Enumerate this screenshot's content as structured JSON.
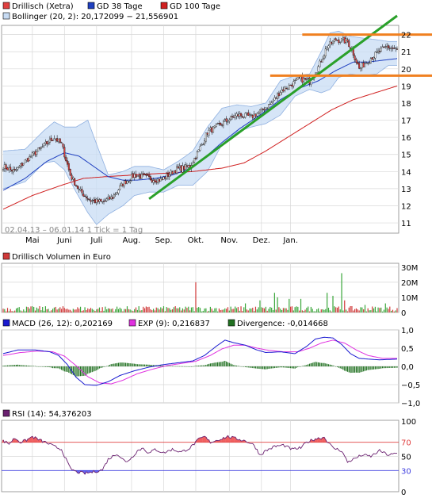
{
  "colors": {
    "price": "#e04040",
    "sma38": "#2040c0",
    "sma100": "#d02020",
    "bollinger_fill": "#c8dcf4",
    "bollinger_line": "#8fb0e0",
    "trend_green": "#2aa02a",
    "resistance_orange": "#f08020",
    "volume_up": "#3aa63a",
    "volume_down": "#d03a3a",
    "macd": "#1a1ad0",
    "macd_signal": "#e030e0",
    "divergence": "#207020",
    "rsi": "#6a2070",
    "rsi_fill_over": "#f06060",
    "rsi_fill_under": "#6060f0",
    "rsi_line_70": "#e04040",
    "rsi_line_30": "#4040e0",
    "grid": "#d8d8d8"
  },
  "chart_data": [
    {
      "type": "candlestick",
      "id": "price",
      "legend": [
        {
          "label": "Drillisch (Xetra)",
          "color_key": "price"
        },
        {
          "label": "GD 38 Tage",
          "color_key": "sma38"
        },
        {
          "label": "GD 100 Tage",
          "color_key": "sma100"
        },
        {
          "label": "Bollinger (20, 2): 20,172099 − 21,556901",
          "color_key": "bollinger_fill"
        }
      ],
      "info": "02.04.13 – 06.01.14   1 Tick = 1 Tag",
      "x_labels": [
        "Mai",
        "Juni",
        "Juli",
        "Aug.",
        "Sep.",
        "Okt.",
        "Nov.",
        "Dez.",
        "Jan."
      ],
      "y_ticks": [
        11,
        12,
        13,
        14,
        15,
        16,
        17,
        18,
        19,
        20,
        21,
        22
      ],
      "ylim": [
        10.4,
        22.4
      ],
      "close_anchors": [
        [
          0,
          14.3
        ],
        [
          8,
          14.0
        ],
        [
          15,
          14.6
        ],
        [
          25,
          15.3
        ],
        [
          35,
          16.0
        ],
        [
          40,
          15.6
        ],
        [
          46,
          13.8
        ],
        [
          52,
          12.9
        ],
        [
          60,
          12.3
        ],
        [
          68,
          12.2
        ],
        [
          75,
          12.5
        ],
        [
          82,
          13.3
        ],
        [
          90,
          13.8
        ],
        [
          100,
          13.6
        ],
        [
          108,
          13.5
        ],
        [
          118,
          14.1
        ],
        [
          128,
          14.3
        ],
        [
          134,
          15.2
        ],
        [
          140,
          16.3
        ],
        [
          150,
          16.8
        ],
        [
          160,
          17.3
        ],
        [
          170,
          17.2
        ],
        [
          176,
          17.5
        ],
        [
          184,
          18.0
        ],
        [
          190,
          18.7
        ],
        [
          196,
          19.0
        ],
        [
          203,
          19.4
        ],
        [
          210,
          19.3
        ],
        [
          216,
          20.1
        ],
        [
          222,
          21.3
        ],
        [
          228,
          21.7
        ],
        [
          236,
          21.6
        ],
        [
          240,
          20.9
        ],
        [
          244,
          20.0
        ],
        [
          250,
          20.5
        ],
        [
          256,
          20.9
        ],
        [
          263,
          21.3
        ],
        [
          270,
          21.1
        ]
      ],
      "sma38_anchors": [
        [
          0,
          12.9
        ],
        [
          15,
          13.6
        ],
        [
          30,
          14.6
        ],
        [
          42,
          15.1
        ],
        [
          52,
          14.9
        ],
        [
          62,
          14.3
        ],
        [
          72,
          13.7
        ],
        [
          82,
          13.5
        ],
        [
          92,
          13.5
        ],
        [
          104,
          13.6
        ],
        [
          116,
          13.8
        ],
        [
          126,
          14.1
        ],
        [
          138,
          14.8
        ],
        [
          150,
          15.7
        ],
        [
          162,
          16.5
        ],
        [
          176,
          17.3
        ],
        [
          190,
          18.2
        ],
        [
          204,
          18.9
        ],
        [
          216,
          19.3
        ],
        [
          228,
          19.9
        ],
        [
          240,
          20.4
        ],
        [
          250,
          20.4
        ],
        [
          260,
          20.5
        ],
        [
          270,
          20.6
        ]
      ],
      "sma100_anchors": [
        [
          0,
          11.8
        ],
        [
          20,
          12.6
        ],
        [
          40,
          13.2
        ],
        [
          55,
          13.6
        ],
        [
          70,
          13.7
        ],
        [
          90,
          13.8
        ],
        [
          110,
          13.9
        ],
        [
          130,
          14.0
        ],
        [
          150,
          14.2
        ],
        [
          165,
          14.5
        ],
        [
          180,
          15.2
        ],
        [
          195,
          16.0
        ],
        [
          210,
          16.8
        ],
        [
          225,
          17.6
        ],
        [
          240,
          18.2
        ],
        [
          255,
          18.6
        ],
        [
          270,
          19.0
        ]
      ],
      "boll_upper_anchors": [
        [
          0,
          15.2
        ],
        [
          15,
          15.3
        ],
        [
          28,
          16.4
        ],
        [
          35,
          16.9
        ],
        [
          42,
          16.6
        ],
        [
          50,
          16.6
        ],
        [
          58,
          17.0
        ],
        [
          64,
          15.6
        ],
        [
          72,
          13.8
        ],
        [
          82,
          14.0
        ],
        [
          90,
          14.3
        ],
        [
          100,
          14.3
        ],
        [
          110,
          14.1
        ],
        [
          120,
          14.6
        ],
        [
          130,
          15.2
        ],
        [
          140,
          16.6
        ],
        [
          150,
          17.7
        ],
        [
          160,
          17.9
        ],
        [
          170,
          17.8
        ],
        [
          180,
          18.0
        ],
        [
          190,
          19.3
        ],
        [
          200,
          19.6
        ],
        [
          210,
          19.7
        ],
        [
          218,
          21.0
        ],
        [
          224,
          22.1
        ],
        [
          230,
          22.2
        ],
        [
          238,
          21.9
        ],
        [
          246,
          21.8
        ],
        [
          256,
          21.7
        ],
        [
          264,
          21.6
        ],
        [
          270,
          21.6
        ]
      ],
      "boll_lower_anchors": [
        [
          0,
          13.0
        ],
        [
          15,
          13.4
        ],
        [
          28,
          14.5
        ],
        [
          35,
          14.6
        ],
        [
          42,
          14.1
        ],
        [
          50,
          12.8
        ],
        [
          58,
          11.6
        ],
        [
          64,
          10.9
        ],
        [
          72,
          11.5
        ],
        [
          82,
          12.0
        ],
        [
          90,
          12.6
        ],
        [
          100,
          12.8
        ],
        [
          110,
          12.8
        ],
        [
          120,
          13.2
        ],
        [
          130,
          13.2
        ],
        [
          140,
          14.0
        ],
        [
          150,
          15.6
        ],
        [
          160,
          16.3
        ],
        [
          170,
          16.6
        ],
        [
          180,
          16.8
        ],
        [
          190,
          17.3
        ],
        [
          200,
          18.4
        ],
        [
          210,
          18.8
        ],
        [
          218,
          18.6
        ],
        [
          224,
          18.8
        ],
        [
          230,
          19.5
        ],
        [
          238,
          19.7
        ],
        [
          246,
          19.6
        ],
        [
          256,
          19.7
        ],
        [
          264,
          20.2
        ],
        [
          270,
          20.2
        ]
      ],
      "trend_line": {
        "from": [
          100,
          12.4
        ],
        "to": [
          270,
          23.1
        ]
      },
      "resistance_levels": [
        {
          "y": 22.0,
          "x_from": 205,
          "x_to": 272
        },
        {
          "y": 19.6,
          "x_from": 183,
          "x_to": 272
        }
      ]
    },
    {
      "type": "bar",
      "id": "volume",
      "legend": [
        {
          "label": "Drillisch Volumen in Euro",
          "color_key": "volume_down"
        }
      ],
      "y_ticks": [
        {
          "v": 0,
          "label": "0"
        },
        {
          "v": 10,
          "label": "10M"
        },
        {
          "v": 20,
          "label": "20M"
        },
        {
          "v": 30,
          "label": "30M"
        }
      ],
      "ylim": [
        0,
        32
      ],
      "unit": "M EUR",
      "spikes": [
        [
          132,
          20
        ],
        [
          166,
          6
        ],
        [
          176,
          8
        ],
        [
          186,
          13
        ],
        [
          188,
          10
        ],
        [
          196,
          9
        ],
        [
          204,
          9
        ],
        [
          222,
          13
        ],
        [
          226,
          11
        ],
        [
          232,
          26
        ],
        [
          234,
          8
        ],
        [
          248,
          5
        ],
        [
          262,
          6
        ]
      ]
    },
    {
      "type": "line",
      "id": "macd",
      "legend": [
        {
          "label": "MACD (26, 12): 0,202169",
          "color_key": "macd"
        },
        {
          "label": "EXP (9): 0,216837",
          "color_key": "macd_signal"
        },
        {
          "label": "Divergence: -0,014668",
          "color_key": "divergence"
        }
      ],
      "y_ticks": [
        {
          "v": 1.0,
          "label": "1,0"
        },
        {
          "v": 0.5,
          "label": "0,5"
        },
        {
          "v": 0.0,
          "label": "0,0"
        },
        {
          "v": -0.5,
          "label": "−0,5"
        },
        {
          "v": -1.0,
          "label": "−1,0"
        }
      ],
      "ylim": [
        -1.0,
        1.0
      ],
      "macd_anchors": [
        [
          0,
          0.35
        ],
        [
          10,
          0.45
        ],
        [
          22,
          0.45
        ],
        [
          32,
          0.4
        ],
        [
          38,
          0.3
        ],
        [
          44,
          0.05
        ],
        [
          50,
          -0.3
        ],
        [
          56,
          -0.5
        ],
        [
          64,
          -0.52
        ],
        [
          72,
          -0.42
        ],
        [
          80,
          -0.25
        ],
        [
          90,
          -0.12
        ],
        [
          100,
          -0.02
        ],
        [
          110,
          0.05
        ],
        [
          120,
          0.1
        ],
        [
          130,
          0.15
        ],
        [
          138,
          0.3
        ],
        [
          146,
          0.55
        ],
        [
          152,
          0.72
        ],
        [
          158,
          0.65
        ],
        [
          166,
          0.58
        ],
        [
          174,
          0.45
        ],
        [
          180,
          0.38
        ],
        [
          190,
          0.4
        ],
        [
          200,
          0.35
        ],
        [
          208,
          0.55
        ],
        [
          214,
          0.75
        ],
        [
          220,
          0.8
        ],
        [
          226,
          0.78
        ],
        [
          232,
          0.6
        ],
        [
          238,
          0.35
        ],
        [
          244,
          0.22
        ],
        [
          250,
          0.2
        ],
        [
          258,
          0.18
        ],
        [
          270,
          0.2
        ]
      ],
      "signal_anchors": [
        [
          0,
          0.3
        ],
        [
          12,
          0.38
        ],
        [
          24,
          0.42
        ],
        [
          34,
          0.4
        ],
        [
          42,
          0.28
        ],
        [
          50,
          0.02
        ],
        [
          58,
          -0.28
        ],
        [
          66,
          -0.45
        ],
        [
          74,
          -0.48
        ],
        [
          82,
          -0.38
        ],
        [
          92,
          -0.2
        ],
        [
          102,
          -0.08
        ],
        [
          112,
          0.02
        ],
        [
          122,
          0.08
        ],
        [
          132,
          0.14
        ],
        [
          142,
          0.3
        ],
        [
          150,
          0.48
        ],
        [
          158,
          0.58
        ],
        [
          166,
          0.58
        ],
        [
          174,
          0.5
        ],
        [
          182,
          0.44
        ],
        [
          192,
          0.4
        ],
        [
          202,
          0.4
        ],
        [
          210,
          0.5
        ],
        [
          218,
          0.64
        ],
        [
          226,
          0.72
        ],
        [
          234,
          0.64
        ],
        [
          242,
          0.45
        ],
        [
          250,
          0.3
        ],
        [
          260,
          0.22
        ],
        [
          270,
          0.22
        ]
      ]
    },
    {
      "type": "line",
      "id": "rsi",
      "legend": [
        {
          "label": "RSI (14): 54,376203",
          "color_key": "rsi"
        }
      ],
      "y_ticks": [
        {
          "v": 100,
          "label": "100"
        },
        {
          "v": 70,
          "label": "70"
        },
        {
          "v": 50,
          "label": "50"
        },
        {
          "v": 30,
          "label": "30"
        },
        {
          "v": 0,
          "label": "0"
        }
      ],
      "ylim": [
        0,
        100
      ],
      "levels": [
        70,
        30
      ],
      "rsi_anchors": [
        [
          0,
          72
        ],
        [
          4,
          68
        ],
        [
          8,
          76
        ],
        [
          12,
          70
        ],
        [
          16,
          73
        ],
        [
          20,
          78
        ],
        [
          25,
          73
        ],
        [
          30,
          69
        ],
        [
          35,
          64
        ],
        [
          40,
          60
        ],
        [
          43,
          46
        ],
        [
          46,
          33
        ],
        [
          50,
          28
        ],
        [
          56,
          26
        ],
        [
          62,
          28
        ],
        [
          68,
          31
        ],
        [
          72,
          46
        ],
        [
          78,
          54
        ],
        [
          84,
          42
        ],
        [
          88,
          48
        ],
        [
          92,
          58
        ],
        [
          96,
          62
        ],
        [
          100,
          54
        ],
        [
          104,
          60
        ],
        [
          110,
          55
        ],
        [
          116,
          60
        ],
        [
          122,
          56
        ],
        [
          128,
          62
        ],
        [
          134,
          74
        ],
        [
          138,
          78
        ],
        [
          142,
          70
        ],
        [
          148,
          74
        ],
        [
          154,
          78
        ],
        [
          160,
          75
        ],
        [
          166,
          72
        ],
        [
          172,
          66
        ],
        [
          176,
          52
        ],
        [
          180,
          58
        ],
        [
          186,
          64
        ],
        [
          192,
          66
        ],
        [
          198,
          60
        ],
        [
          204,
          62
        ],
        [
          208,
          70
        ],
        [
          214,
          75
        ],
        [
          220,
          77
        ],
        [
          226,
          62
        ],
        [
          232,
          58
        ],
        [
          236,
          42
        ],
        [
          242,
          48
        ],
        [
          246,
          52
        ],
        [
          252,
          50
        ],
        [
          258,
          58
        ],
        [
          264,
          52
        ],
        [
          270,
          54
        ]
      ]
    }
  ]
}
